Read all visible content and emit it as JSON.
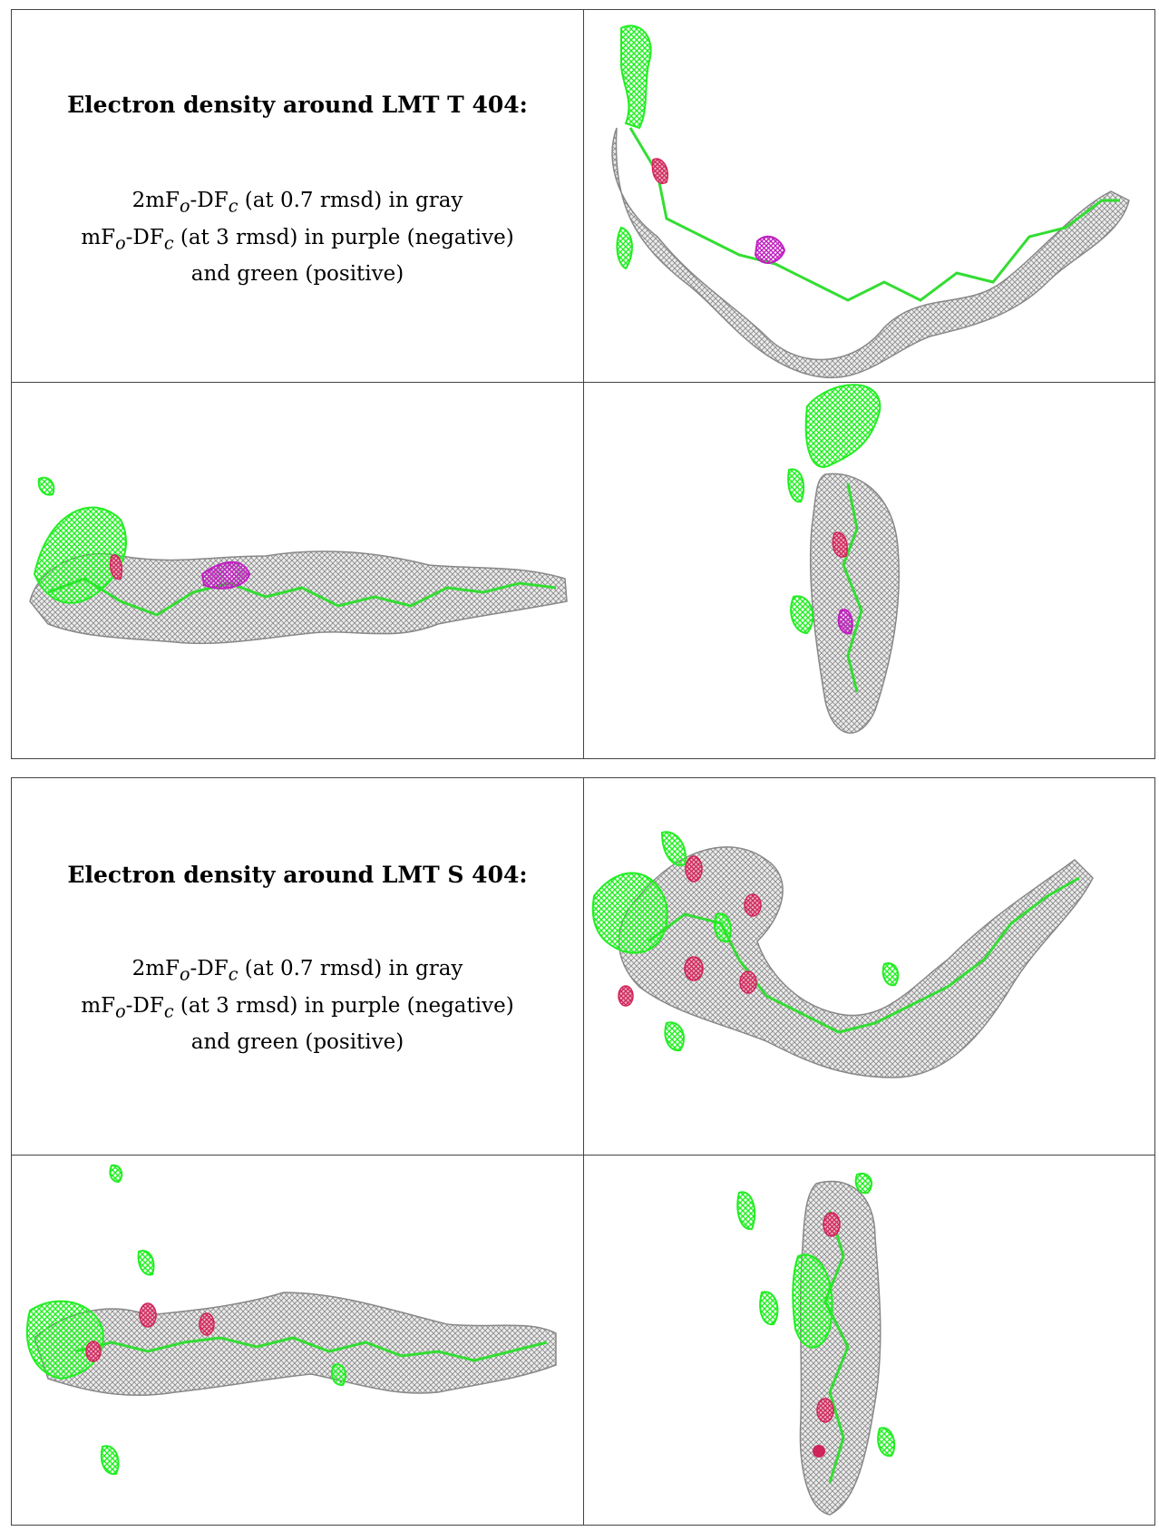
{
  "panels": [
    {
      "title": "Electron density around LMT T 404:",
      "line1": {
        "pre": "2mF",
        "sub1": "o",
        "mid": "-DF",
        "sub2": "c",
        "post": " (at 0.7 rmsd) in gray"
      },
      "line2": {
        "pre": "mF",
        "sub1": "o",
        "mid": "-DF",
        "sub2": "c",
        "post": " (at 3 rmsd) in purple (negative)"
      },
      "line3": "and green (positive)"
    },
    {
      "title": "Electron density around LMT S 404:",
      "line1": {
        "pre": "2mF",
        "sub1": "o",
        "mid": "-DF",
        "sub2": "c",
        "post": " (at 0.7 rmsd) in gray"
      },
      "line2": {
        "pre": "mF",
        "sub1": "o",
        "mid": "-DF",
        "sub2": "c",
        "post": " (at 3 rmsd) in purple (negative)"
      },
      "line3": "and green (positive)"
    }
  ],
  "colors": {
    "mesh_gray": "#9a9a9a",
    "positive_green": "#22ee22",
    "negative_purple": "#c020c0",
    "oxygen_red": "#d0245a"
  }
}
